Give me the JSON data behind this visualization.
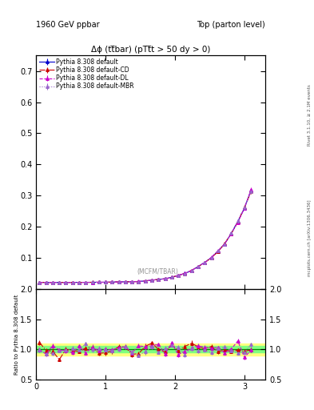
{
  "title_left": "1960 GeV ppbar",
  "title_right": "Top (parton level)",
  "plot_title": "Δϕ (tt̅bar) (pTt̅t > 50 dy > 0)",
  "watermark": "(MCFM/TBAR)",
  "right_label_top": "Rivet 3.1.10, ≥ 2.1M events",
  "right_label_bottom": "mcplots.cern.ch [arXiv:1306.3436]",
  "ylabel_ratio": "Ratio to Pythia 8.308 default",
  "ylim_main": [
    0.0,
    0.75
  ],
  "ylim_ratio": [
    0.5,
    2.0
  ],
  "yticks_main": [
    0.0,
    0.1,
    0.2,
    0.3,
    0.4,
    0.5,
    0.6,
    0.7
  ],
  "yticks_ratio": [
    0.5,
    1.0,
    1.5,
    2.0
  ],
  "xlim": [
    0.0,
    3.3
  ],
  "xticks": [
    0,
    1,
    2,
    3
  ],
  "legend_entries": [
    "Pythia 8.308 default",
    "Pythia 8.308 default-CD",
    "Pythia 8.308 default-DL",
    "Pythia 8.308 default-MBR"
  ],
  "line_colors": [
    "#0000cc",
    "#cc0000",
    "#cc00cc",
    "#9966cc"
  ],
  "line_styles": [
    "-",
    "-.",
    "--",
    ":"
  ],
  "marker": "^",
  "marker_size": 2.5,
  "ratio_band_yellow": "#ffff80",
  "ratio_band_green": "#80ff80",
  "ratio_line_color": "#008800"
}
